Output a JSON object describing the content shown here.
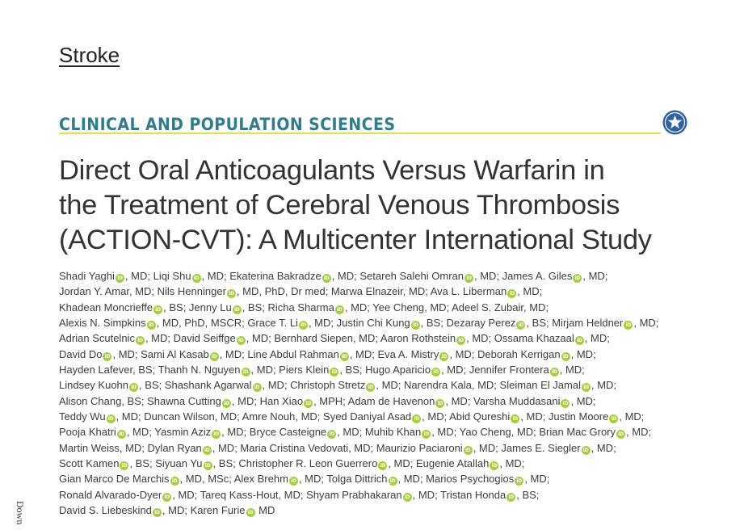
{
  "journal": "Stroke",
  "section": "CLINICAL AND POPULATION SCIENCES",
  "title_lines": [
    "Direct Oral Anticoagulants Versus Warfarin in",
    "the Treatment of Cerebral Venous Thrombosis",
    "(ACTION-CVT): A Multicenter International Study"
  ],
  "orcid_badge": "iD",
  "side_text": "Down",
  "author_lines": [
    [
      {
        "t": "Shadi Yaghi"
      },
      {
        "o": 1
      },
      {
        "t": ", MD; Liqi Shu"
      },
      {
        "o": 1
      },
      {
        "t": ", MD; Ekaterina Bakradze"
      },
      {
        "o": 1
      },
      {
        "t": ", MD; Setareh Salehi Omran"
      },
      {
        "o": 1
      },
      {
        "t": ", MD; James A. Giles"
      },
      {
        "o": 1
      },
      {
        "t": ", MD;"
      }
    ],
    [
      {
        "t": "Jordan Y. Amar, MD; Nils Henninger"
      },
      {
        "o": 1
      },
      {
        "t": ", MD, PhD, Dr med; Marwa Elnazeir, MD; Ava L. Liberman"
      },
      {
        "o": 1
      },
      {
        "t": ", MD;"
      }
    ],
    [
      {
        "t": "Khadean Moncrieffe"
      },
      {
        "o": 1
      },
      {
        "t": ", BS; Jenny Lu"
      },
      {
        "o": 1
      },
      {
        "t": ", BS; Richa Sharma"
      },
      {
        "o": 1
      },
      {
        "t": ", MD; Yee Cheng, MD; Adeel S. Zubair, MD;"
      }
    ],
    [
      {
        "t": "Alexis N. Simpkins"
      },
      {
        "o": 1
      },
      {
        "t": ", MD, PhD, MSCR; Grace T. Li"
      },
      {
        "o": 1
      },
      {
        "t": ", MD; Justin Chi Kung"
      },
      {
        "o": 1
      },
      {
        "t": ", BS; Dezaray Perez"
      },
      {
        "o": 1
      },
      {
        "t": ", BS; Mirjam Heldner"
      },
      {
        "o": 1
      },
      {
        "t": ", MD;"
      }
    ],
    [
      {
        "t": "Adrian Scutelnic"
      },
      {
        "o": 1
      },
      {
        "t": ", MD; David Seiffge"
      },
      {
        "o": 1
      },
      {
        "t": ", MD; Bernhard Siepen, MD; Aaron Rothstein"
      },
      {
        "o": 1
      },
      {
        "t": ", MD; Ossama Khazaal"
      },
      {
        "o": 1
      },
      {
        "t": ", MD;"
      }
    ],
    [
      {
        "t": "David Do"
      },
      {
        "o": 1
      },
      {
        "t": ", MD; Sami Al Kasab"
      },
      {
        "o": 1
      },
      {
        "t": ", MD; Line Abdul Rahman"
      },
      {
        "o": 1
      },
      {
        "t": ", MD; Eva A. Mistry"
      },
      {
        "o": 1
      },
      {
        "t": ", MD; Deborah Kerrigan"
      },
      {
        "o": 1
      },
      {
        "t": ", MD;"
      }
    ],
    [
      {
        "t": "Hayden Lafever, BS; Thanh N. Nguyen"
      },
      {
        "o": 1
      },
      {
        "t": ", MD; Piers Klein"
      },
      {
        "o": 1
      },
      {
        "t": ", BS; Hugo Aparicio"
      },
      {
        "o": 1
      },
      {
        "t": ", MD; Jennifer Frontera"
      },
      {
        "o": 1
      },
      {
        "t": ", MD;"
      }
    ],
    [
      {
        "t": "Lindsey Kuohn"
      },
      {
        "o": 1
      },
      {
        "t": ", BS; Shashank Agarwal"
      },
      {
        "o": 1
      },
      {
        "t": ", MD; Christoph Stretz"
      },
      {
        "o": 1
      },
      {
        "t": ", MD; Narendra Kala, MD; Sleiman El Jamal"
      },
      {
        "o": 1
      },
      {
        "t": ", MD;"
      }
    ],
    [
      {
        "t": "Alison Chang, BS; Shawna Cutting"
      },
      {
        "o": 1
      },
      {
        "t": ", MD; Han Xiao"
      },
      {
        "o": 1
      },
      {
        "t": ", MPH; Adam de Havenon"
      },
      {
        "o": 1
      },
      {
        "t": ", MD; Varsha Muddasani"
      },
      {
        "o": 1
      },
      {
        "t": ", MD;"
      }
    ],
    [
      {
        "t": "Teddy Wu"
      },
      {
        "o": 1
      },
      {
        "t": ", MD; Duncan Wilson, MD; Amre Nouh, MD; Syed Daniyal Asad"
      },
      {
        "o": 1
      },
      {
        "t": ", MD; Abid Qureshi"
      },
      {
        "o": 1
      },
      {
        "t": ", MD; Justin Moore"
      },
      {
        "o": 1
      },
      {
        "t": ", MD;"
      }
    ],
    [
      {
        "t": "Pooja Khatri"
      },
      {
        "o": 1
      },
      {
        "t": ", MD; Yasmin Aziz"
      },
      {
        "o": 1
      },
      {
        "t": ", MD; Bryce Casteigne"
      },
      {
        "o": 1
      },
      {
        "t": ", MD; Muhib Khan"
      },
      {
        "o": 1
      },
      {
        "t": ", MD; Yao Cheng, MD; Brian Mac Grory"
      },
      {
        "o": 1
      },
      {
        "t": ", MD;"
      }
    ],
    [
      {
        "t": "Martin Weiss, MD; Dylan Ryan"
      },
      {
        "o": 1
      },
      {
        "t": ", MD; Maria Cristina Vedovati, MD; Maurizio Paciaroni"
      },
      {
        "o": 1
      },
      {
        "t": ", MD; James E. Siegler"
      },
      {
        "o": 1
      },
      {
        "t": ", MD;"
      }
    ],
    [
      {
        "t": "Scott Kamen"
      },
      {
        "o": 1
      },
      {
        "t": ", BS; Siyuan Yu"
      },
      {
        "o": 1
      },
      {
        "t": ", BS; Christopher R. Leon Guerrero"
      },
      {
        "o": 1
      },
      {
        "t": ", MD; Eugenie Atallah"
      },
      {
        "o": 1
      },
      {
        "t": ", MD;"
      }
    ],
    [
      {
        "t": "Gian Marco De Marchis"
      },
      {
        "o": 1
      },
      {
        "t": ", MD, MSc; Alex Brehm"
      },
      {
        "o": 1
      },
      {
        "t": ", MD; Tolga Dittrich"
      },
      {
        "o": 1
      },
      {
        "t": ", MD; Marios Psychogios"
      },
      {
        "o": 1
      },
      {
        "t": ", MD;"
      }
    ],
    [
      {
        "t": "Ronald Alvarado-Dyer"
      },
      {
        "o": 1
      },
      {
        "t": ", MD; Tareq Kass-Hout, MD; Shyam Prabhakaran"
      },
      {
        "o": 1
      },
      {
        "t": ", MD; Tristan Honda"
      },
      {
        "o": 1
      },
      {
        "t": ", BS;"
      }
    ],
    [
      {
        "t": "David S. Liebeskind"
      },
      {
        "o": 1
      },
      {
        "t": ", MD; Karen Furie"
      },
      {
        "o": 1
      },
      {
        "t": " MD"
      }
    ]
  ]
}
